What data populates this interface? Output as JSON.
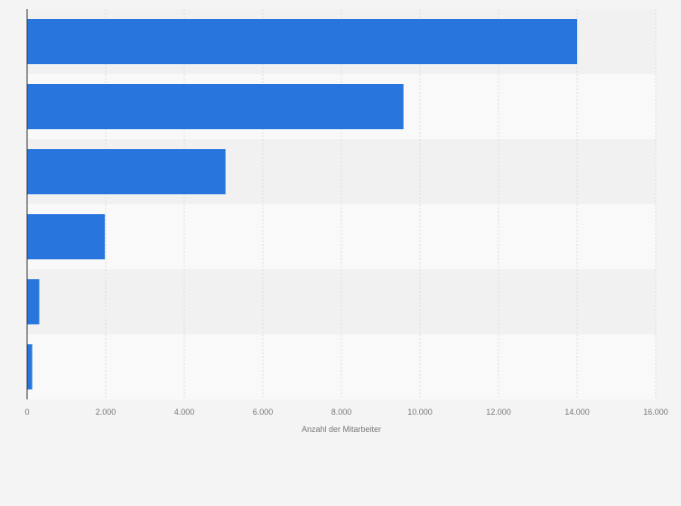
{
  "chart_data": {
    "type": "bar",
    "orientation": "horizontal",
    "categories": [
      "",
      "",
      "",
      "",
      "",
      ""
    ],
    "values": [
      14000,
      9580,
      5050,
      1980,
      310,
      130
    ],
    "xlabel": "Anzahl der Mitarbeiter",
    "ylabel": "",
    "xlim": [
      0,
      16000
    ],
    "x_ticks": [
      0,
      2000,
      4000,
      6000,
      8000,
      10000,
      12000,
      14000,
      16000
    ],
    "x_tick_labels": [
      "0",
      "2.000",
      "4.000",
      "6.000",
      "8.000",
      "10.000",
      "12.000",
      "14.000",
      "16.000"
    ],
    "grid": true,
    "legend": "none",
    "colors": {
      "bar": "#2876dd",
      "band_dark": "#f1f1f1",
      "band_light": "#f9f9f9",
      "grid": "#dddddd",
      "axis": "#333333",
      "text": "#777777",
      "background": "#f4f4f4"
    }
  }
}
